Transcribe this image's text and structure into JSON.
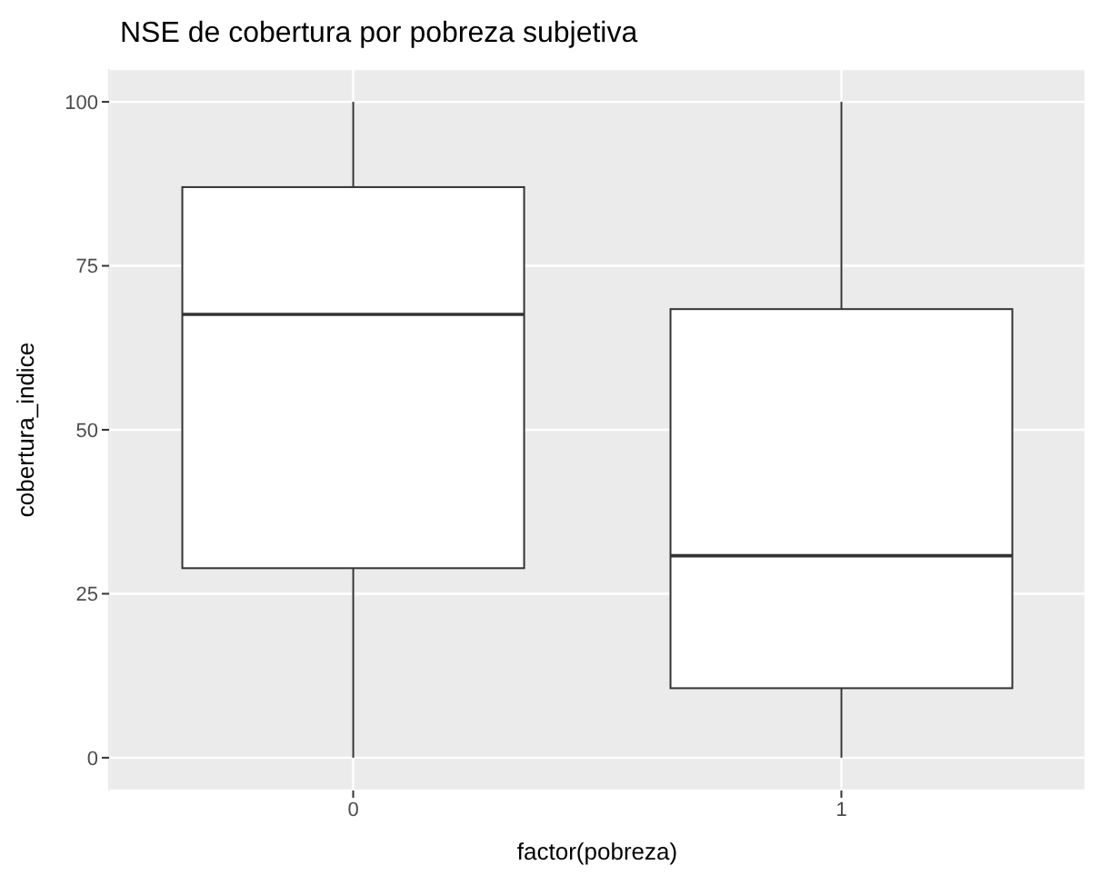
{
  "chart_data": {
    "type": "box",
    "title": "NSE de cobertura por pobreza subjetiva",
    "xlabel": "factor(pobreza)",
    "ylabel": "cobertura_indice",
    "categories": [
      "0",
      "1"
    ],
    "boxes": [
      {
        "low": 0,
        "q1": 28.9,
        "median": 67.6,
        "q3": 87,
        "high": 100
      },
      {
        "low": 0,
        "q1": 10.6,
        "median": 30.8,
        "q3": 68.4,
        "high": 100
      }
    ],
    "ylim": [
      -5,
      105
    ],
    "yticks": [
      0,
      25,
      50,
      75,
      100
    ],
    "grid": true,
    "legend": false
  }
}
